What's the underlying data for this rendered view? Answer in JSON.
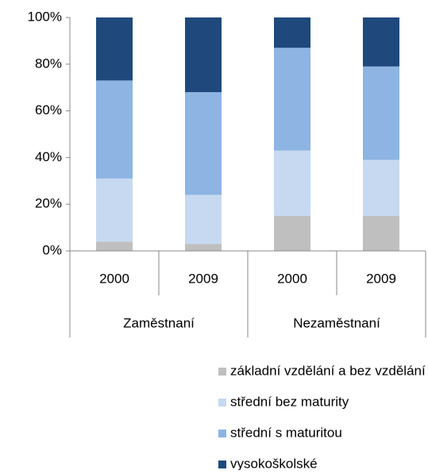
{
  "chart_data": {
    "type": "stacked_bar",
    "categories": [
      "2000",
      "2009",
      "2000",
      "2009"
    ],
    "groups": [
      "Zaměstnaní",
      "Nezaměstnaní"
    ],
    "series": [
      {
        "name": "základní vzdělání a bez vzdělání",
        "color": "#bfbfbf",
        "values": [
          4,
          3,
          15,
          15
        ]
      },
      {
        "name": "střední bez maturity",
        "color": "#c6d9f1",
        "values": [
          27,
          21,
          28,
          24
        ]
      },
      {
        "name": "střední s maturitou",
        "color": "#8db4e2",
        "values": [
          42,
          44,
          44,
          40
        ]
      },
      {
        "name": "vysokoškolské",
        "color": "#1f497d",
        "values": [
          27,
          32,
          13,
          21
        ]
      }
    ],
    "ylim": [
      0,
      100
    ],
    "yticks": [
      {
        "value": 0,
        "label": "0%"
      },
      {
        "value": 20,
        "label": "20%"
      },
      {
        "value": 40,
        "label": "40%"
      },
      {
        "value": 60,
        "label": "60%"
      },
      {
        "value": 80,
        "label": "80%"
      },
      {
        "value": 100,
        "label": "100%"
      }
    ],
    "grid": false,
    "legend": "bottom"
  }
}
